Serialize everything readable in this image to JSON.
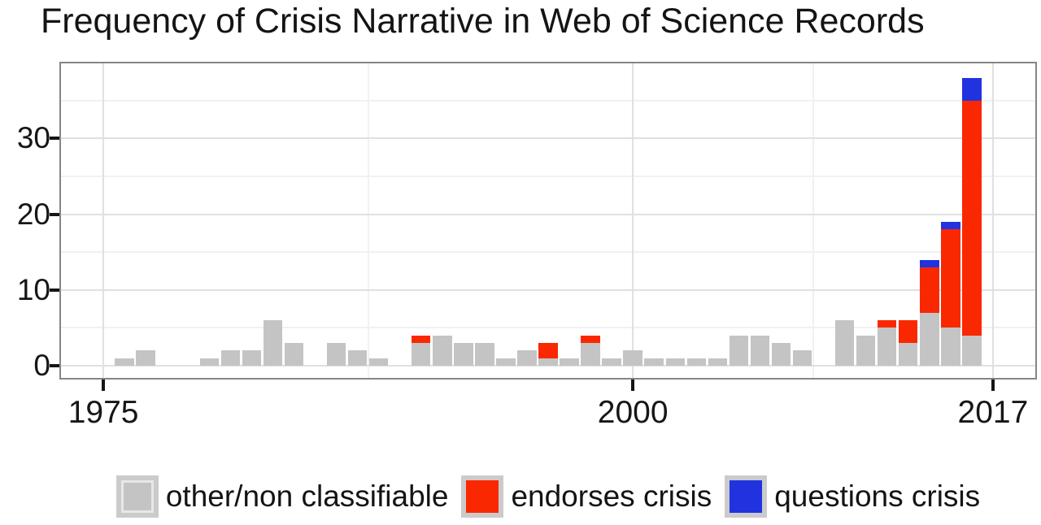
{
  "chart_data": {
    "type": "bar",
    "stacked": true,
    "title": "Frequency of Crisis Narrative in Web of Science Records",
    "xlabel": "",
    "ylabel": "",
    "categories": [
      1975,
      1976,
      1977,
      1978,
      1979,
      1980,
      1981,
      1982,
      1983,
      1984,
      1985,
      1986,
      1987,
      1988,
      1989,
      1990,
      1991,
      1992,
      1993,
      1994,
      1995,
      1996,
      1997,
      1998,
      1999,
      2000,
      2001,
      2002,
      2003,
      2004,
      2005,
      2006,
      2007,
      2008,
      2009,
      2010,
      2011,
      2012,
      2013,
      2014,
      2015,
      2016,
      2017
    ],
    "series": [
      {
        "name": "other/non classifiable",
        "color": "#c4c4c4",
        "values": [
          0,
          1,
          2,
          0,
          0,
          1,
          2,
          2,
          6,
          3,
          0,
          3,
          2,
          1,
          0,
          3,
          4,
          3,
          3,
          1,
          2,
          1,
          1,
          3,
          1,
          2,
          1,
          1,
          1,
          1,
          4,
          4,
          3,
          2,
          0,
          6,
          4,
          5,
          3,
          7,
          5,
          4,
          0
        ]
      },
      {
        "name": "endorses crisis",
        "color": "#fa2800",
        "values": [
          0,
          0,
          0,
          0,
          0,
          0,
          0,
          0,
          0,
          0,
          0,
          0,
          0,
          0,
          0,
          1,
          0,
          0,
          0,
          0,
          0,
          2,
          0,
          1,
          0,
          0,
          0,
          0,
          0,
          0,
          0,
          0,
          0,
          0,
          0,
          0,
          0,
          1,
          3,
          6,
          13,
          31,
          0
        ]
      },
      {
        "name": "questions crisis",
        "color": "#2133df",
        "values": [
          0,
          0,
          0,
          0,
          0,
          0,
          0,
          0,
          0,
          0,
          0,
          0,
          0,
          0,
          0,
          0,
          0,
          0,
          0,
          0,
          0,
          0,
          0,
          0,
          0,
          0,
          0,
          0,
          0,
          0,
          0,
          0,
          0,
          0,
          0,
          0,
          0,
          0,
          0,
          1,
          1,
          3,
          0
        ]
      }
    ],
    "x_ticks": [
      1975,
      2000,
      2017
    ],
    "y_ticks": [
      0,
      10,
      20,
      30
    ],
    "x_minor_gridlines": [
      1987.5,
      2008.5
    ],
    "y_minor_gridlines": [
      5,
      15,
      25,
      35
    ],
    "x_range": [
      1973,
      2019
    ],
    "y_range": [
      -1.6,
      39.9
    ],
    "bar_rel_width": 0.9,
    "grid": true,
    "legend_position": "bottom",
    "colors": {
      "panel_background": "#ffffff",
      "grid_major": "#e0e0e0",
      "grid_minor": "#f1f1f1",
      "frame": "#858585",
      "tick": "#151515",
      "text": "#141414",
      "legend_key_background": "#cbcbcb"
    }
  }
}
